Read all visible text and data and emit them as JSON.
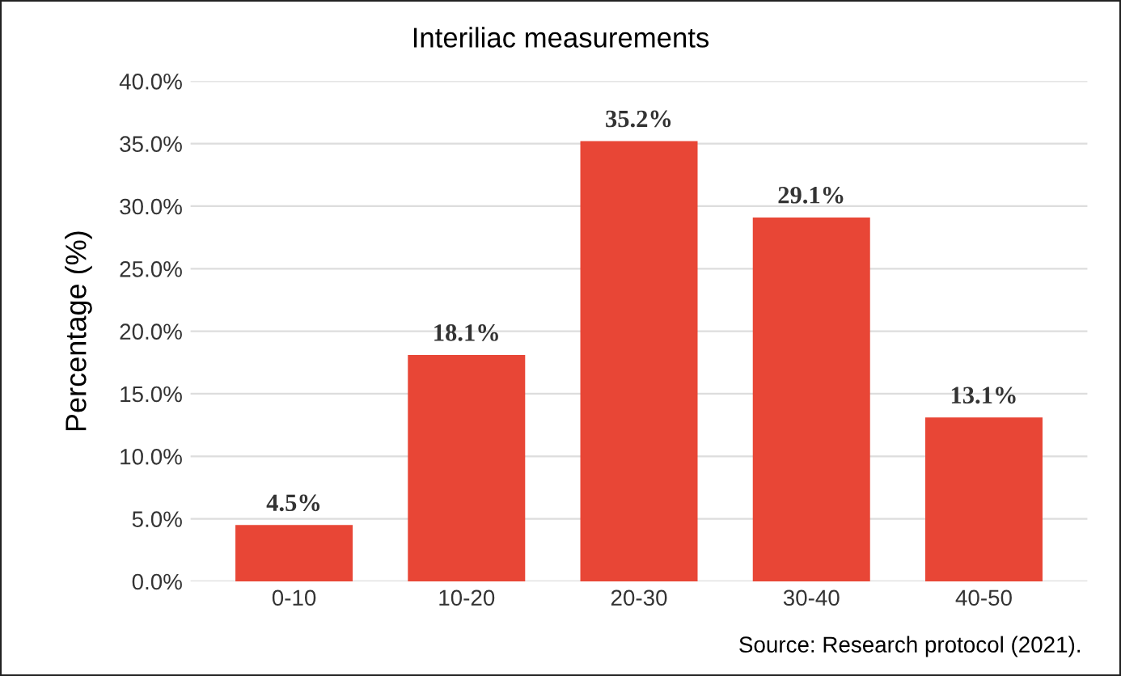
{
  "chart_data": {
    "type": "bar",
    "title": "Interiliac measurements",
    "ylabel": "Percentage (%)",
    "categories": [
      "0-10",
      "10-20",
      "20-30",
      "30-40",
      "40-50"
    ],
    "values": [
      4.5,
      18.1,
      35.2,
      29.1,
      13.1
    ],
    "color": "#e84636",
    "value_labels": [
      "4.5%",
      "18.1%",
      "35.2%",
      "29.1%",
      "13.1%"
    ],
    "ylim": [
      0,
      40
    ],
    "yticks": [
      {
        "value": 0,
        "label": "0.0%"
      },
      {
        "value": 5,
        "label": "5.0%"
      },
      {
        "value": 10,
        "label": "10.0%"
      },
      {
        "value": 15,
        "label": "15.0%"
      },
      {
        "value": 20,
        "label": "20.0%"
      },
      {
        "value": 25,
        "label": "25.0%"
      },
      {
        "value": 30,
        "label": "30.0%"
      },
      {
        "value": 35,
        "label": "35.0%"
      },
      {
        "value": 40,
        "label": "40.0%"
      }
    ],
    "grid": "y",
    "legend": false,
    "annotations": [
      "Source: Research protocol (2021)."
    ]
  }
}
